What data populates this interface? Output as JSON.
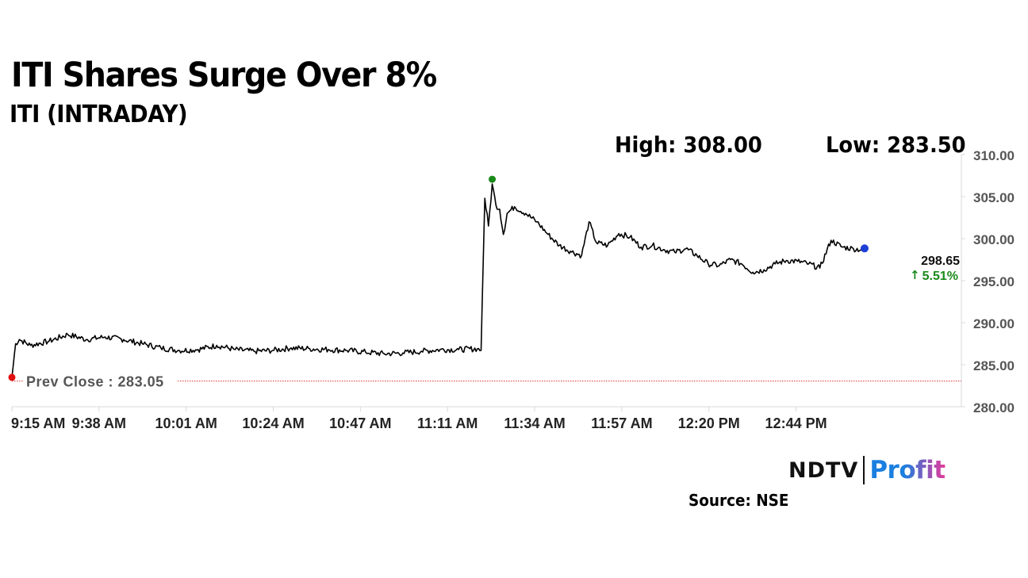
{
  "header": {
    "title": "ITI Shares Surge Over 8%",
    "subtitle": "ITI (INTRADAY)"
  },
  "stats": {
    "high_label": "High: 308.00",
    "low_label": "Low: 283.50"
  },
  "chart_data": {
    "type": "line",
    "title": "ITI Shares Surge Over 8%",
    "subtitle": "ITI (INTRADAY)",
    "xlabel": "",
    "ylabel": "",
    "ylim": [
      280,
      310
    ],
    "y_ticks": [
      "310.00",
      "305.00",
      "300.00",
      "295.00",
      "290.00",
      "285.00",
      "280.00"
    ],
    "x_ticks": [
      "9:15 AM",
      "9:38 AM",
      "10:01 AM",
      "10:24 AM",
      "10:47 AM",
      "11:11 AM",
      "11:34 AM",
      "11:57 AM",
      "12:20 PM",
      "12:44 PM"
    ],
    "x_range_minutes": [
      555,
      810
    ],
    "grid": false,
    "series": [
      {
        "values_time_price": [
          [
            "9:15",
            283.5
          ],
          [
            "9:16",
            287.5
          ],
          [
            "9:17",
            288.0
          ],
          [
            "9:20",
            287.3
          ],
          [
            "9:25",
            287.8
          ],
          [
            "9:30",
            288.6
          ],
          [
            "9:35",
            288.0
          ],
          [
            "9:40",
            288.3
          ],
          [
            "9:45",
            288.0
          ],
          [
            "9:50",
            287.5
          ],
          [
            "9:55",
            287.0
          ],
          [
            "10:00",
            286.7
          ],
          [
            "10:05",
            286.8
          ],
          [
            "10:10",
            287.3
          ],
          [
            "10:15",
            286.8
          ],
          [
            "10:20",
            286.6
          ],
          [
            "10:25",
            286.7
          ],
          [
            "10:30",
            287.0
          ],
          [
            "10:35",
            286.9
          ],
          [
            "10:40",
            286.8
          ],
          [
            "10:45",
            286.7
          ],
          [
            "10:50",
            286.5
          ],
          [
            "10:55",
            286.3
          ],
          [
            "11:00",
            286.4
          ],
          [
            "11:05",
            286.6
          ],
          [
            "11:10",
            286.8
          ],
          [
            "11:15",
            286.8
          ],
          [
            "11:20",
            286.9
          ],
          [
            "11:21",
            286.7
          ],
          [
            "11:22",
            304.8
          ],
          [
            "11:23",
            301.5
          ],
          [
            "11:24",
            306.5
          ],
          [
            "11:25",
            304.0
          ],
          [
            "11:26",
            303.5
          ],
          [
            "11:27",
            300.5
          ],
          [
            "11:28",
            303.0
          ],
          [
            "11:30",
            303.8
          ],
          [
            "11:33",
            303.0
          ],
          [
            "11:36",
            302.0
          ],
          [
            "11:39",
            300.5
          ],
          [
            "11:42",
            299.2
          ],
          [
            "11:45",
            298.5
          ],
          [
            "11:48",
            298.0
          ],
          [
            "11:50",
            302.0
          ],
          [
            "11:52",
            299.5
          ],
          [
            "11:55",
            299.2
          ],
          [
            "11:58",
            300.6
          ],
          [
            "12:01",
            300.2
          ],
          [
            "12:04",
            299.0
          ],
          [
            "12:07",
            299.2
          ],
          [
            "12:10",
            298.7
          ],
          [
            "12:13",
            298.4
          ],
          [
            "12:16",
            298.8
          ],
          [
            "12:19",
            298.0
          ],
          [
            "12:22",
            297.0
          ],
          [
            "12:25",
            296.8
          ],
          [
            "12:28",
            297.5
          ],
          [
            "12:31",
            297.0
          ],
          [
            "12:34",
            296.0
          ],
          [
            "12:37",
            296.3
          ],
          [
            "12:40",
            297.0
          ],
          [
            "12:43",
            297.4
          ],
          [
            "12:46",
            297.3
          ],
          [
            "12:49",
            297.0
          ],
          [
            "12:52",
            296.5
          ],
          [
            "12:55",
            299.8
          ],
          [
            "12:58",
            299.0
          ],
          [
            "13:01",
            298.8
          ],
          [
            "13:04",
            298.65
          ]
        ]
      }
    ],
    "prev_close": 283.05,
    "prev_close_label": "Prev Close : 283.05",
    "last_price_label": "298.65",
    "change_label": "5.51%",
    "high_marker": [
      "11:24",
      306.5
    ],
    "open_marker": [
      "9:15",
      283.5
    ],
    "last_marker": [
      "13:04",
      298.65
    ],
    "colors": {
      "line": "#000000",
      "prev_close_line": "#e03030",
      "high_marker": "#1a8a1a",
      "open_marker": "#e01010",
      "last_marker": "#1d3fd6",
      "change_up": "#1a8a1a",
      "axis": "#d8d8d8"
    }
  },
  "branding": {
    "logo_ndtv": "NDTV",
    "logo_profit": "Profit",
    "logo_icon": "ndtv-profit-logo"
  },
  "source": "Source: NSE"
}
